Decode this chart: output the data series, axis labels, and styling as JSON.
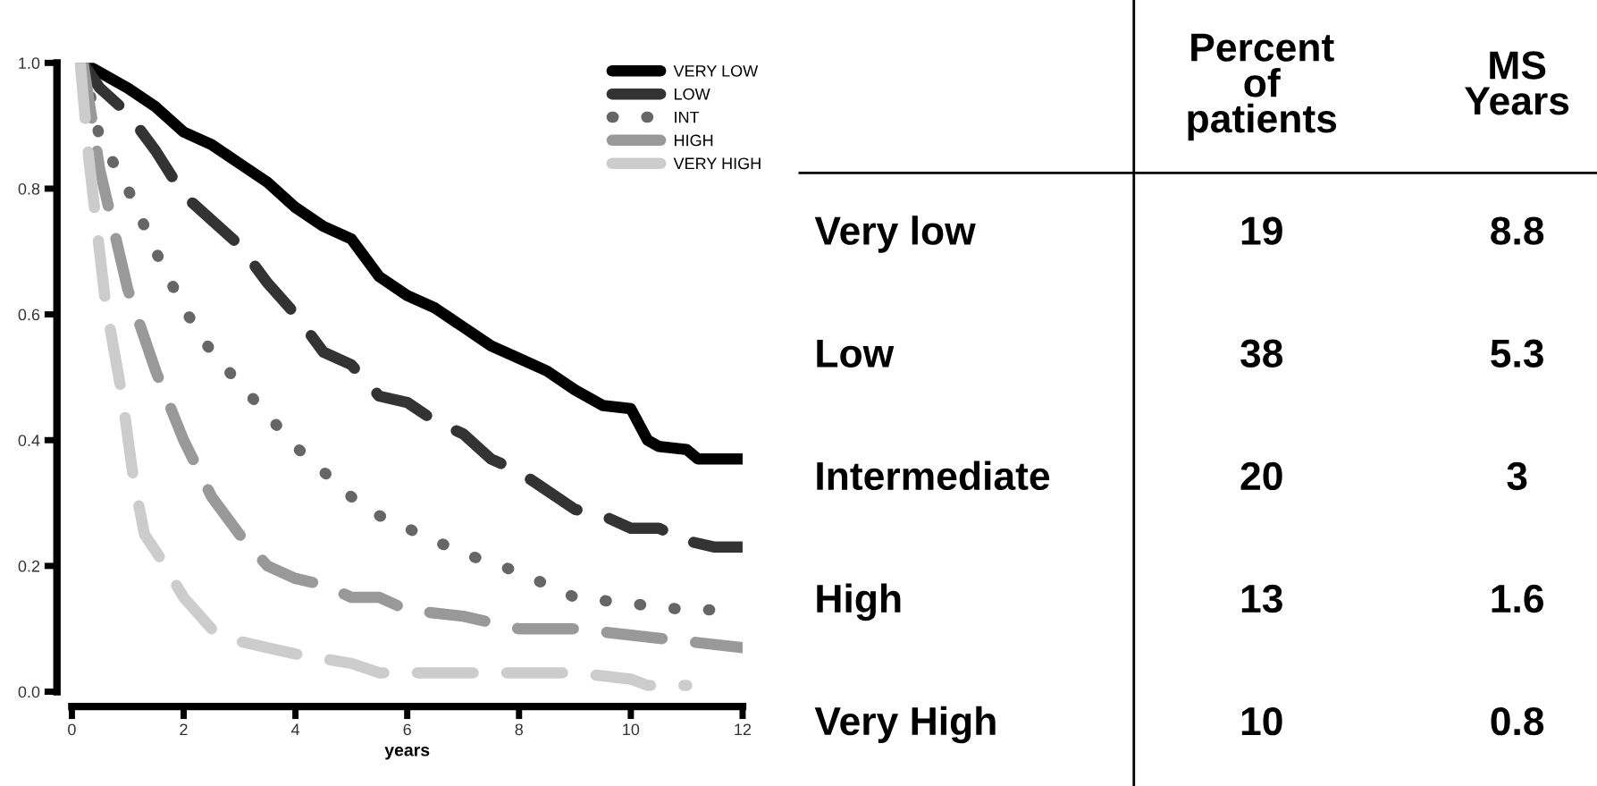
{
  "chart_data": [
    {
      "type": "line",
      "xlabel": "years",
      "xlim": [
        0,
        12
      ],
      "xticks": [
        0,
        2,
        4,
        6,
        8,
        10,
        12
      ],
      "ylim": [
        0,
        1.0
      ],
      "yticks": [
        {
          "value": 0,
          "label": "0.0"
        },
        0.2,
        0.4,
        0.6,
        0.8,
        {
          "value": 1.0,
          "label": "1.0"
        }
      ],
      "legend": "top right",
      "grid": false,
      "marker": "none",
      "series": [
        {
          "name": "VERY LOW",
          "color": "#000000",
          "line_style": "solid",
          "x": [
            0.2,
            1,
            1.5,
            2,
            2.5,
            3,
            3.5,
            4,
            4.5,
            5,
            5.5,
            6,
            6.5,
            7,
            7.5,
            8,
            8.5,
            9,
            9.5,
            10,
            10.3,
            10.5,
            11,
            11.2,
            12
          ],
          "values": [
            1.0,
            0.96,
            0.93,
            0.89,
            0.87,
            0.84,
            0.81,
            0.77,
            0.74,
            0.72,
            0.66,
            0.63,
            0.61,
            0.58,
            0.55,
            0.53,
            0.51,
            0.48,
            0.455,
            0.45,
            0.4,
            0.39,
            0.385,
            0.37,
            0.37
          ]
        },
        {
          "name": "LOW",
          "color": "#333333",
          "line_style": "dashed",
          "x": [
            0.2,
            0.5,
            1,
            1.5,
            2,
            3,
            3.5,
            4,
            4.5,
            5,
            5.5,
            6,
            6.5,
            7,
            7.5,
            8,
            8.5,
            9,
            9.5,
            10,
            10.5,
            11,
            11.5,
            12
          ],
          "values": [
            1.0,
            0.96,
            0.92,
            0.86,
            0.79,
            0.71,
            0.65,
            0.6,
            0.54,
            0.52,
            0.47,
            0.46,
            0.43,
            0.41,
            0.37,
            0.35,
            0.32,
            0.29,
            0.28,
            0.26,
            0.26,
            0.24,
            0.23,
            0.23
          ]
        },
        {
          "name": "INT",
          "color": "#666666",
          "line_style": "dotted",
          "x": [
            0.2,
            0.5,
            1,
            1.5,
            2,
            2.5,
            3,
            3.5,
            4,
            4.5,
            5,
            5.5,
            6,
            7,
            8,
            9,
            10,
            11,
            11.6
          ],
          "values": [
            1.0,
            0.88,
            0.8,
            0.7,
            0.61,
            0.54,
            0.49,
            0.44,
            0.39,
            0.35,
            0.31,
            0.28,
            0.26,
            0.22,
            0.19,
            0.15,
            0.14,
            0.13,
            0.13
          ]
        },
        {
          "name": "HIGH",
          "color": "#999999",
          "line_style": "dashed",
          "x": [
            0.2,
            0.5,
            1,
            1.5,
            2,
            2.5,
            3,
            3.5,
            4,
            4.5,
            5,
            5.5,
            6,
            7,
            8,
            9,
            10,
            11,
            12
          ],
          "values": [
            1.0,
            0.83,
            0.64,
            0.51,
            0.4,
            0.31,
            0.25,
            0.2,
            0.18,
            0.17,
            0.15,
            0.15,
            0.13,
            0.12,
            0.1,
            0.1,
            0.09,
            0.08,
            0.07
          ]
        },
        {
          "name": "VERY HIGH",
          "color": "#cccccc",
          "line_style": "dashed",
          "x": [
            0.15,
            0.3,
            0.6,
            0.9,
            1.1,
            1.3,
            1.6,
            2,
            2.5,
            3,
            3.5,
            4,
            5,
            5.5,
            7,
            9,
            10,
            10.3,
            11
          ],
          "values": [
            1.0,
            0.85,
            0.62,
            0.47,
            0.34,
            0.25,
            0.21,
            0.15,
            0.1,
            0.08,
            0.07,
            0.06,
            0.045,
            0.03,
            0.03,
            0.03,
            0.02,
            0.01,
            0.01
          ]
        }
      ]
    },
    {
      "type": "other",
      "categories": [
        "Very low",
        "Low",
        "Intermediate",
        "High",
        "Very High"
      ],
      "data_labels": true,
      "series": [
        {
          "name": "Percent of patients",
          "values": [
            19,
            38,
            20,
            13,
            10
          ]
        },
        {
          "name": "MS Years",
          "values": [
            8.8,
            5.3,
            3,
            1.6,
            0.8
          ]
        }
      ]
    }
  ]
}
